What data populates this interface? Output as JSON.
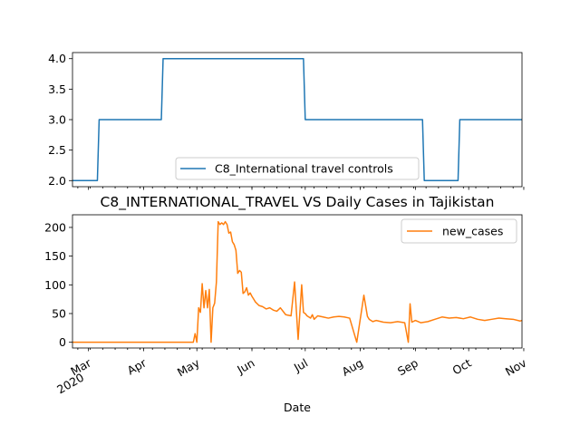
{
  "chart_data": [
    {
      "type": "line",
      "title": "",
      "xlabel": "",
      "ylabel": "",
      "x_range": [
        "2020-02-21",
        "2020-10-31"
      ],
      "ylim": [
        1.9,
        4.1
      ],
      "yticks": [
        "2.0",
        "2.5",
        "3.0",
        "3.5",
        "4.0"
      ],
      "legend_position": "lower center",
      "grid": false,
      "series": [
        {
          "name": "C8_International travel controls",
          "color": "#1f77b4",
          "x": [
            "2020-02-21",
            "2020-03-06",
            "2020-03-07",
            "2020-04-11",
            "2020-04-12",
            "2020-06-30",
            "2020-07-01",
            "2020-09-05",
            "2020-09-06",
            "2020-09-25",
            "2020-09-26",
            "2020-10-31"
          ],
          "values": [
            2,
            2,
            3,
            3,
            4,
            4,
            3,
            3,
            2,
            2,
            3,
            3
          ]
        }
      ]
    },
    {
      "type": "line",
      "title": "C8_INTERNATIONAL_TRAVEL VS Daily Cases in Tajikistan",
      "xlabel": "Date",
      "ylabel": "",
      "x_range": [
        "2020-02-21",
        "2020-10-31"
      ],
      "ylim": [
        -10,
        222
      ],
      "yticks": [
        "0",
        "50",
        "100",
        "150",
        "200"
      ],
      "xticks": [
        {
          "date": "2020-03-01",
          "label": "Mar",
          "sub": "2020"
        },
        {
          "date": "2020-04-01",
          "label": "Apr"
        },
        {
          "date": "2020-05-01",
          "label": "May"
        },
        {
          "date": "2020-06-01",
          "label": "Jun"
        },
        {
          "date": "2020-07-01",
          "label": "Jul"
        },
        {
          "date": "2020-08-01",
          "label": "Aug"
        },
        {
          "date": "2020-09-01",
          "label": "Sep"
        },
        {
          "date": "2020-10-01",
          "label": "Oct"
        },
        {
          "date": "2020-11-01",
          "label": "Nov"
        }
      ],
      "legend_position": "upper right",
      "grid": false,
      "series": [
        {
          "name": "new_cases",
          "color": "#ff7f0e",
          "x": [
            "2020-02-21",
            "2020-04-29",
            "2020-04-30",
            "2020-05-01",
            "2020-05-02",
            "2020-05-03",
            "2020-05-04",
            "2020-05-05",
            "2020-05-06",
            "2020-05-07",
            "2020-05-08",
            "2020-05-09",
            "2020-05-10",
            "2020-05-11",
            "2020-05-12",
            "2020-05-13",
            "2020-05-14",
            "2020-05-15",
            "2020-05-16",
            "2020-05-17",
            "2020-05-18",
            "2020-05-19",
            "2020-05-20",
            "2020-05-21",
            "2020-05-22",
            "2020-05-23",
            "2020-05-24",
            "2020-05-25",
            "2020-05-26",
            "2020-05-27",
            "2020-05-28",
            "2020-05-29",
            "2020-05-30",
            "2020-05-31",
            "2020-06-01",
            "2020-06-02",
            "2020-06-03",
            "2020-06-05",
            "2020-06-07",
            "2020-06-09",
            "2020-06-11",
            "2020-06-13",
            "2020-06-15",
            "2020-06-17",
            "2020-06-20",
            "2020-06-23",
            "2020-06-25",
            "2020-06-27",
            "2020-06-29",
            "2020-06-30",
            "2020-07-01",
            "2020-07-02",
            "2020-07-03",
            "2020-07-04",
            "2020-07-05",
            "2020-07-06",
            "2020-07-08",
            "2020-07-11",
            "2020-07-14",
            "2020-07-17",
            "2020-07-20",
            "2020-07-23",
            "2020-07-26",
            "2020-07-30",
            "2020-08-03",
            "2020-08-05",
            "2020-08-06",
            "2020-08-07",
            "2020-08-08",
            "2020-08-10",
            "2020-08-14",
            "2020-08-18",
            "2020-08-22",
            "2020-08-26",
            "2020-08-28",
            "2020-08-29",
            "2020-08-30",
            "2020-09-01",
            "2020-09-04",
            "2020-09-08",
            "2020-09-12",
            "2020-09-16",
            "2020-09-20",
            "2020-09-24",
            "2020-09-28",
            "2020-10-02",
            "2020-10-06",
            "2020-10-10",
            "2020-10-14",
            "2020-10-18",
            "2020-10-22",
            "2020-10-26",
            "2020-10-30",
            "2020-10-31"
          ],
          "values": [
            0,
            0,
            15,
            0,
            60,
            52,
            102,
            60,
            90,
            60,
            92,
            0,
            60,
            68,
            105,
            210,
            205,
            208,
            205,
            210,
            205,
            190,
            192,
            175,
            170,
            160,
            120,
            125,
            122,
            85,
            88,
            95,
            82,
            86,
            80,
            75,
            70,
            64,
            62,
            58,
            60,
            56,
            54,
            60,
            48,
            46,
            105,
            5,
            100,
            52,
            50,
            46,
            44,
            42,
            48,
            40,
            46,
            44,
            42,
            44,
            45,
            44,
            42,
            0,
            82,
            45,
            40,
            38,
            36,
            38,
            35,
            34,
            36,
            34,
            0,
            67,
            35,
            38,
            34,
            36,
            40,
            44,
            42,
            43,
            41,
            44,
            40,
            38,
            40,
            42,
            41,
            40,
            37,
            38
          ]
        }
      ]
    }
  ]
}
